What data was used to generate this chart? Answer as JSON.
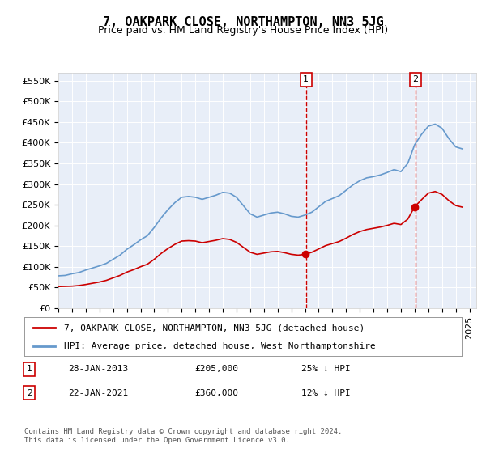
{
  "title": "7, OAKPARK CLOSE, NORTHAMPTON, NN3 5JG",
  "subtitle": "Price paid vs. HM Land Registry's House Price Index (HPI)",
  "xlabel": "",
  "ylabel": "",
  "ylim": [
    0,
    570000
  ],
  "yticks": [
    0,
    50000,
    100000,
    150000,
    200000,
    250000,
    300000,
    350000,
    400000,
    450000,
    500000,
    550000
  ],
  "ytick_labels": [
    "£0",
    "£50K",
    "£100K",
    "£150K",
    "£200K",
    "£250K",
    "£300K",
    "£350K",
    "£400K",
    "£450K",
    "£500K",
    "£550K"
  ],
  "background_color": "#e8eef8",
  "plot_bg_color": "#e8eef8",
  "hpi_color": "#6699cc",
  "price_color": "#cc0000",
  "marker_color_1": "#cc0000",
  "marker_color_2": "#cc0000",
  "vline_color": "#cc0000",
  "legend_box_color": "#ffffff",
  "title_fontsize": 11,
  "subtitle_fontsize": 9,
  "tick_fontsize": 8,
  "legend_fontsize": 8,
  "sale1_date": 2013.07,
  "sale1_price": 205000,
  "sale1_label": "1",
  "sale1_text": "28-JAN-2013",
  "sale1_price_text": "£205,000",
  "sale1_hpi_text": "25% ↓ HPI",
  "sale2_date": 2021.07,
  "sale2_price": 360000,
  "sale2_label": "2",
  "sale2_text": "22-JAN-2021",
  "sale2_price_text": "£360,000",
  "sale2_hpi_text": "12% ↓ HPI",
  "legend_line1": "7, OAKPARK CLOSE, NORTHAMPTON, NN3 5JG (detached house)",
  "legend_line2": "HPI: Average price, detached house, West Northamptonshire",
  "footer": "Contains HM Land Registry data © Crown copyright and database right 2024.\nThis data is licensed under the Open Government Licence v3.0.",
  "hpi_x": [
    1995,
    1995.5,
    1996,
    1996.5,
    1997,
    1997.5,
    1998,
    1998.5,
    1999,
    1999.5,
    2000,
    2000.5,
    2001,
    2001.5,
    2002,
    2002.5,
    2003,
    2003.5,
    2004,
    2004.5,
    2005,
    2005.5,
    2006,
    2006.5,
    2007,
    2007.5,
    2008,
    2008.5,
    2009,
    2009.5,
    2010,
    2010.5,
    2011,
    2011.5,
    2012,
    2012.5,
    2013,
    2013.5,
    2014,
    2014.5,
    2015,
    2015.5,
    2016,
    2016.5,
    2017,
    2017.5,
    2018,
    2018.5,
    2019,
    2019.5,
    2020,
    2020.5,
    2021,
    2021.5,
    2022,
    2022.5,
    2023,
    2023.5,
    2024,
    2024.5
  ],
  "hpi_y": [
    78000,
    79000,
    83000,
    86000,
    92000,
    97000,
    102000,
    108000,
    118000,
    128000,
    142000,
    153000,
    165000,
    175000,
    195000,
    218000,
    238000,
    255000,
    268000,
    270000,
    268000,
    263000,
    268000,
    273000,
    280000,
    278000,
    268000,
    248000,
    228000,
    220000,
    225000,
    230000,
    232000,
    228000,
    222000,
    220000,
    225000,
    232000,
    245000,
    258000,
    265000,
    272000,
    285000,
    298000,
    308000,
    315000,
    318000,
    322000,
    328000,
    335000,
    330000,
    350000,
    395000,
    420000,
    440000,
    445000,
    435000,
    410000,
    390000,
    385000
  ],
  "price_x": [
    1995,
    1995.5,
    1996,
    1996.5,
    1997,
    1997.5,
    1998,
    1998.5,
    1999,
    1999.5,
    2000,
    2000.5,
    2001,
    2001.5,
    2002,
    2002.5,
    2003,
    2003.5,
    2004,
    2004.5,
    2005,
    2005.5,
    2006,
    2006.5,
    2007,
    2007.5,
    2008,
    2008.5,
    2009,
    2009.5,
    2010,
    2010.5,
    2011,
    2011.5,
    2012,
    2012.5,
    2013,
    2013.5,
    2014,
    2014.5,
    2015,
    2015.5,
    2016,
    2016.5,
    2017,
    2017.5,
    2018,
    2018.5,
    2019,
    2019.5,
    2020,
    2020.5,
    2021,
    2021.5,
    2022,
    2022.5,
    2023,
    2023.5,
    2024,
    2024.5
  ],
  "price_y": [
    52000,
    52500,
    53000,
    54500,
    57000,
    60000,
    63000,
    67000,
    73000,
    79000,
    87000,
    93000,
    100000,
    106000,
    118000,
    132000,
    144000,
    154000,
    162000,
    163000,
    162000,
    158000,
    161000,
    164000,
    168000,
    166000,
    159000,
    147000,
    135000,
    130000,
    133000,
    136000,
    137000,
    134000,
    130000,
    128000,
    130000,
    135000,
    143000,
    151000,
    156000,
    161000,
    169000,
    178000,
    185000,
    190000,
    193000,
    196000,
    200000,
    205000,
    202000,
    215000,
    245000,
    262000,
    278000,
    282000,
    275000,
    260000,
    248000,
    244000
  ]
}
